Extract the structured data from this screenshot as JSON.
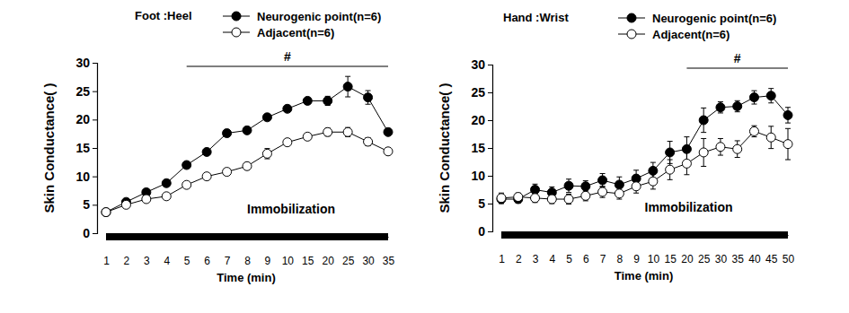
{
  "chart_data": [
    {
      "type": "line",
      "title": "Foot :Heel",
      "y_label": "Skin Conductance(  )",
      "x_label": "Time (min)",
      "categories": [
        "1",
        "2",
        "3",
        "4",
        "5",
        "6",
        "7",
        "8",
        "9",
        "10",
        "15",
        "20",
        "25",
        "30",
        "35"
      ],
      "series": [
        {
          "name": "Neurogenic point(n=6)",
          "color": "#000000",
          "marker": "filled_circle",
          "values": [
            3.7,
            5.5,
            7.2,
            8.8,
            12.0,
            14.3,
            17.6,
            18.1,
            20.4,
            21.9,
            23.3,
            23.3,
            25.8,
            23.9,
            17.8
          ],
          "errors": [
            0.2,
            0.3,
            0.3,
            0.3,
            0.4,
            0.4,
            0.4,
            0.6,
            0.4,
            0.4,
            0.6,
            0.8,
            1.8,
            1.2,
            0.6
          ]
        },
        {
          "name": "Adjacent(n=6)",
          "color": "#000000",
          "marker": "open_circle",
          "values": [
            3.7,
            5.0,
            6.0,
            6.5,
            8.5,
            10.0,
            10.8,
            11.8,
            14.0,
            16.0,
            17.0,
            17.8,
            17.8,
            16.1,
            14.4
          ],
          "errors": [
            0.2,
            0.3,
            0.3,
            0.3,
            0.4,
            0.5,
            0.4,
            0.5,
            0.9,
            0.5,
            0.5,
            0.7,
            0.8,
            0.7,
            0.4
          ]
        }
      ],
      "ylim": [
        0,
        30
      ],
      "yticks": [
        0,
        5,
        10,
        15,
        20,
        25,
        30
      ],
      "annotations": [
        {
          "text": "#",
          "from": "5",
          "to": "35"
        },
        {
          "text": "Immobilization"
        }
      ]
    },
    {
      "type": "line",
      "title": "Hand :Wrist",
      "y_label": "Skin Conductance(  )",
      "x_label": "Time (min)",
      "categories": [
        "1",
        "2",
        "3",
        "4",
        "5",
        "6",
        "7",
        "8",
        "9",
        "10",
        "15",
        "20",
        "25",
        "30",
        "35",
        "40",
        "45",
        "50"
      ],
      "series": [
        {
          "name": "Neurogenic point(n=6)",
          "color": "#000000",
          "marker": "filled_circle",
          "values": [
            5.8,
            5.8,
            7.5,
            7.0,
            8.2,
            8.1,
            9.2,
            8.4,
            9.5,
            10.9,
            14.2,
            14.8,
            20.0,
            22.3,
            22.5,
            24.1,
            24.4,
            20.9
          ],
          "errors": [
            0.8,
            0.7,
            1.0,
            1.0,
            1.2,
            1.0,
            1.2,
            1.4,
            1.5,
            1.5,
            2.0,
            2.2,
            2.2,
            1.0,
            1.0,
            1.2,
            1.3,
            1.4
          ]
        },
        {
          "name": "Adjacent(n=6)",
          "color": "#000000",
          "marker": "open_circle",
          "values": [
            6.0,
            6.2,
            6.0,
            5.8,
            5.8,
            6.4,
            7.1,
            6.8,
            8.1,
            9.0,
            11.1,
            12.2,
            14.2,
            15.2,
            14.8,
            18.0,
            16.9,
            15.7
          ],
          "errors": [
            0.9,
            0.7,
            0.8,
            0.8,
            0.9,
            0.9,
            1.0,
            1.0,
            1.2,
            1.4,
            1.8,
            2.0,
            2.5,
            1.5,
            1.5,
            1.0,
            2.0,
            2.8
          ]
        }
      ],
      "ylim": [
        0,
        30
      ],
      "yticks": [
        0,
        5,
        10,
        15,
        20,
        25,
        30
      ],
      "annotations": [
        {
          "text": "#",
          "from": "20",
          "to": "50"
        },
        {
          "text": "Immobilization"
        }
      ]
    }
  ]
}
